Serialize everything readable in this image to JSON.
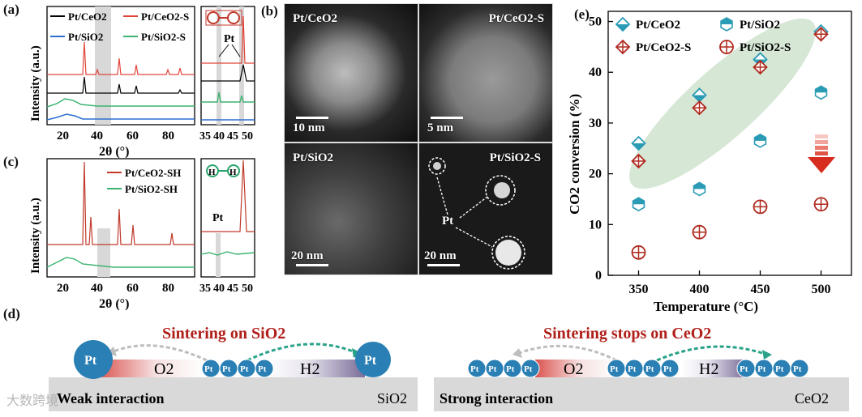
{
  "panels": {
    "a": {
      "label": "(a)"
    },
    "b": {
      "label": "(b)"
    },
    "c": {
      "label": "(c)"
    },
    "d": {
      "label": "(d)"
    },
    "e": {
      "label": "(e)"
    }
  },
  "xrd_a": {
    "ylabel": "Intensity (a.u.)",
    "xlabel": "2θ (°)",
    "ticks": [
      "20",
      "40",
      "60",
      "80"
    ],
    "zoom_ticks": [
      "35",
      "40",
      "45",
      "50"
    ],
    "legend": [
      "Pt/CeO2",
      "Pt/CeO2-S",
      "Pt/SiO2",
      "Pt/SiO2-S"
    ],
    "pt_label": "Pt"
  },
  "xrd_c": {
    "ylabel": "Intensity (a.u.)",
    "xlabel": "2θ (°)",
    "ticks": [
      "20",
      "40",
      "60",
      "80"
    ],
    "zoom_ticks": [
      "35",
      "40",
      "45",
      "50"
    ],
    "legend": [
      "Pt/CeO2-SH",
      "Pt/SiO2-SH"
    ],
    "pt_label": "Pt",
    "h_label": "H"
  },
  "tem": {
    "tl": {
      "title": "Pt/CeO2",
      "scale": "10 nm"
    },
    "tr": {
      "title": "Pt/CeO2-S",
      "scale": "5 nm"
    },
    "bl": {
      "title": "Pt/SiO2",
      "scale": "20 nm"
    },
    "br": {
      "title": "Pt/SiO2-S",
      "scale": "20 nm",
      "pointer": "Pt"
    }
  },
  "chart_data": {
    "type": "scatter",
    "xlabel": "Temperature (°C)",
    "ylabel": "CO2 conversion (%)",
    "x": [
      350,
      400,
      450,
      500
    ],
    "xlim": [
      325,
      525
    ],
    "ylim": [
      0,
      52
    ],
    "yticks": [
      0,
      10,
      20,
      30,
      40,
      50
    ],
    "series": [
      {
        "name": "Pt/CeO2",
        "values": [
          26,
          35.5,
          42.5,
          48
        ],
        "color": "#2a9bb5",
        "marker": "diamond-half"
      },
      {
        "name": "Pt/SiO2",
        "values": [
          14,
          17,
          26.5,
          36
        ],
        "color": "#2a9bb5",
        "marker": "hexagon-half"
      },
      {
        "name": "Pt/CeO2-S",
        "values": [
          22.5,
          33,
          41,
          47.5
        ],
        "color": "#b02a1e",
        "marker": "diamond-plus"
      },
      {
        "name": "Pt/SiO2-S",
        "values": [
          4.5,
          8.5,
          13.5,
          14
        ],
        "color": "#b02a1e",
        "marker": "circle-plus"
      }
    ]
  },
  "schematic": {
    "left_title": "Sintering on SiO2",
    "right_title": "Sintering stops on CeO2",
    "left_base": "Weak interaction",
    "left_support": "SiO2",
    "right_base": "Strong interaction",
    "right_support": "CeO2",
    "o2": "O2",
    "h2": "H2",
    "pt": "Pt"
  },
  "watermark": "大数跨境"
}
